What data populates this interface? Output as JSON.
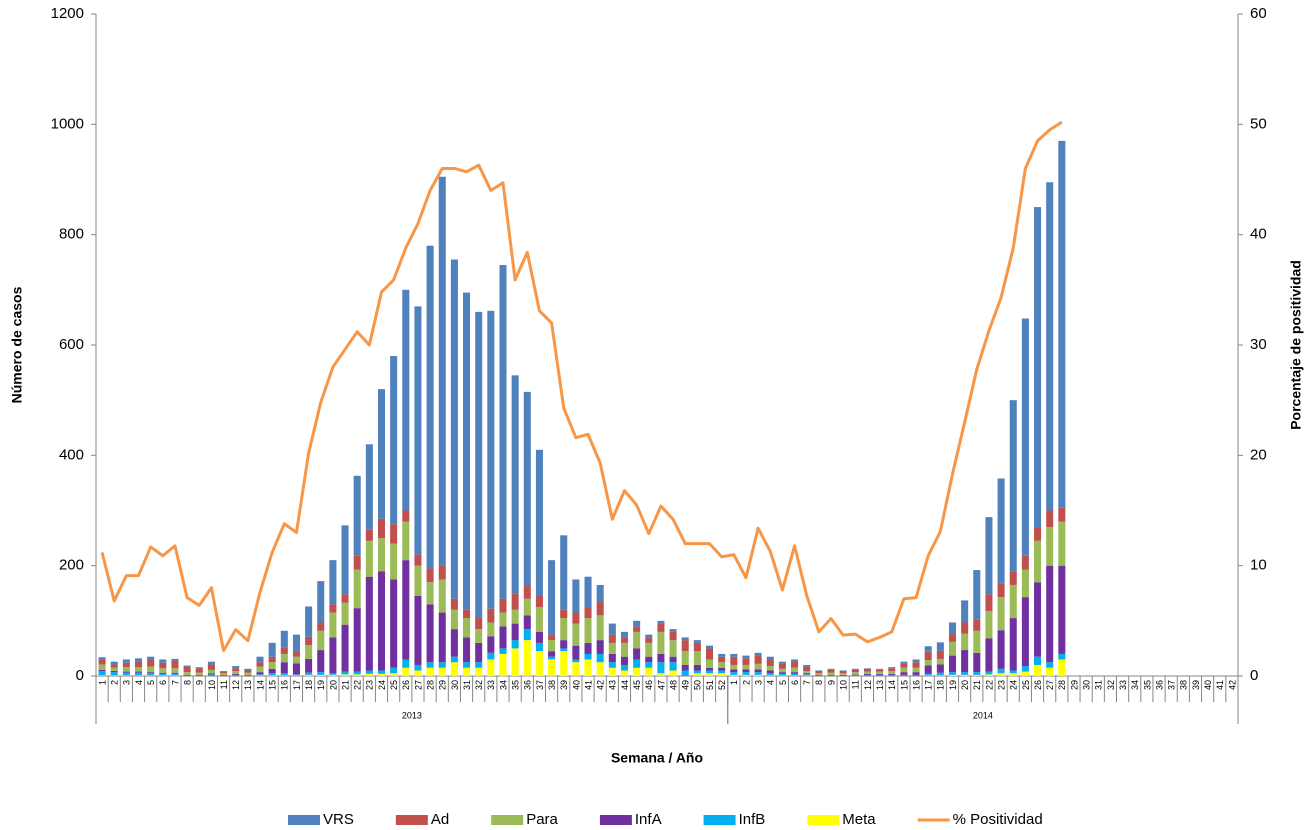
{
  "chart_data": {
    "type": "bar",
    "x_label": "Semana / Año",
    "y_label": "Número de casos",
    "y2_label": "Porcentaje de positividad",
    "categories": [
      "1",
      "2",
      "3",
      "4",
      "5",
      "6",
      "7",
      "8",
      "9",
      "10",
      "11",
      "12",
      "13",
      "14",
      "15",
      "16",
      "17",
      "18",
      "19",
      "20",
      "21",
      "22",
      "23",
      "24",
      "25",
      "26",
      "27",
      "28",
      "29",
      "30",
      "31",
      "32",
      "33",
      "34",
      "35",
      "36",
      "37",
      "38",
      "39",
      "40",
      "41",
      "42",
      "43",
      "44",
      "45",
      "46",
      "47",
      "48",
      "49",
      "50",
      "51",
      "52",
      "1",
      "2",
      "3",
      "4",
      "5",
      "6",
      "7",
      "8",
      "9",
      "10",
      "11",
      "12",
      "13",
      "14",
      "15",
      "16",
      "17",
      "18",
      "19",
      "20",
      "21",
      "22",
      "23",
      "24",
      "25",
      "26",
      "27",
      "28",
      "29",
      "30",
      "31",
      "32",
      "33",
      "34",
      "35",
      "36",
      "37",
      "38",
      "39",
      "40",
      "41",
      "42"
    ],
    "groups": [
      "2013",
      "2014"
    ],
    "ylim": [
      0,
      1200
    ],
    "yticks": [
      0,
      200,
      400,
      600,
      800,
      1000,
      1200
    ],
    "y2lim": [
      0,
      60
    ],
    "y2ticks": [
      0,
      10,
      20,
      30,
      40,
      50,
      60
    ],
    "series": [
      {
        "name": "VRS",
        "color": "#4f81bd",
        "values": [
          5,
          5,
          6,
          6,
          6,
          6,
          3,
          2,
          2,
          5,
          1,
          4,
          3,
          10,
          25,
          30,
          30,
          55,
          75,
          80,
          125,
          145,
          155,
          235,
          305,
          400,
          450,
          585,
          705,
          615,
          575,
          555,
          540,
          605,
          395,
          350,
          265,
          135,
          135,
          60,
          55,
          30,
          20,
          10,
          10,
          5,
          5,
          5,
          5,
          5,
          5,
          5,
          5,
          5,
          5,
          5,
          3,
          3,
          3,
          1,
          1,
          1,
          1,
          1,
          1,
          2,
          3,
          5,
          10,
          15,
          20,
          40,
          90,
          140,
          190,
          310,
          430,
          580,
          595,
          665,
          null,
          null,
          null,
          null,
          null,
          null,
          null,
          null,
          null,
          null,
          null,
          null,
          null,
          null
        ]
      },
      {
        "name": "Ad",
        "color": "#c0504d",
        "values": [
          8,
          6,
          8,
          10,
          12,
          10,
          14,
          10,
          8,
          10,
          3,
          5,
          4,
          8,
          10,
          12,
          10,
          15,
          15,
          15,
          15,
          25,
          20,
          35,
          35,
          20,
          20,
          25,
          25,
          20,
          15,
          20,
          25,
          25,
          30,
          25,
          20,
          10,
          15,
          20,
          20,
          25,
          15,
          10,
          10,
          10,
          15,
          15,
          20,
          15,
          20,
          10,
          15,
          12,
          15,
          12,
          10,
          12,
          8,
          4,
          6,
          4,
          5,
          5,
          4,
          5,
          8,
          10,
          15,
          15,
          15,
          20,
          20,
          30,
          25,
          25,
          25,
          25,
          30,
          25,
          null,
          null,
          null,
          null,
          null,
          null,
          null,
          null,
          null,
          null,
          null,
          null,
          null,
          null
        ]
      },
      {
        "name": "Para",
        "color": "#9bbb59",
        "values": [
          10,
          6,
          8,
          8,
          10,
          8,
          8,
          5,
          4,
          6,
          3,
          5,
          4,
          10,
          12,
          15,
          12,
          25,
          35,
          45,
          40,
          70,
          65,
          60,
          65,
          70,
          55,
          40,
          60,
          35,
          35,
          25,
          25,
          25,
          25,
          30,
          45,
          20,
          40,
          40,
          45,
          45,
          20,
          25,
          30,
          25,
          40,
          30,
          25,
          25,
          15,
          10,
          8,
          8,
          10,
          8,
          6,
          8,
          4,
          3,
          4,
          3,
          4,
          4,
          4,
          5,
          8,
          8,
          10,
          10,
          25,
          30,
          40,
          50,
          60,
          60,
          50,
          75,
          70,
          80,
          null,
          null,
          null,
          null,
          null,
          null,
          null,
          null,
          null,
          null,
          null,
          null,
          null,
          null
        ]
      },
      {
        "name": "InfA",
        "color": "#7030a0",
        "values": [
          2,
          2,
          2,
          2,
          2,
          2,
          2,
          1,
          1,
          2,
          1,
          2,
          1,
          4,
          8,
          20,
          20,
          25,
          40,
          65,
          85,
          115,
          170,
          180,
          160,
          180,
          125,
          105,
          90,
          50,
          45,
          35,
          30,
          40,
          30,
          25,
          20,
          10,
          15,
          25,
          20,
          25,
          15,
          15,
          20,
          10,
          15,
          10,
          10,
          10,
          5,
          5,
          5,
          5,
          5,
          5,
          3,
          3,
          2,
          1,
          1,
          1,
          1,
          2,
          2,
          2,
          5,
          5,
          15,
          15,
          30,
          40,
          35,
          60,
          70,
          95,
          125,
          135,
          175,
          160,
          null,
          null,
          null,
          null,
          null,
          null,
          null,
          null,
          null,
          null,
          null,
          null,
          null,
          null
        ]
      },
      {
        "name": "InfB",
        "color": "#00b0f0",
        "values": [
          8,
          6,
          5,
          5,
          4,
          3,
          3,
          1,
          1,
          3,
          1,
          2,
          1,
          2,
          4,
          4,
          2,
          4,
          5,
          3,
          5,
          5,
          6,
          6,
          10,
          15,
          10,
          10,
          10,
          10,
          10,
          10,
          12,
          10,
          15,
          20,
          15,
          5,
          5,
          5,
          10,
          15,
          10,
          10,
          15,
          10,
          20,
          15,
          10,
          5,
          5,
          5,
          5,
          5,
          5,
          4,
          3,
          3,
          2,
          1,
          1,
          1,
          2,
          2,
          2,
          2,
          2,
          2,
          3,
          5,
          5,
          5,
          5,
          5,
          8,
          5,
          10,
          15,
          10,
          10,
          null,
          null,
          null,
          null,
          null,
          null,
          null,
          null,
          null,
          null,
          null,
          null,
          null,
          null
        ]
      },
      {
        "name": "Meta",
        "color": "#ffff00",
        "values": [
          1,
          1,
          1,
          1,
          1,
          1,
          1,
          0,
          0,
          0,
          0,
          0,
          0,
          1,
          1,
          1,
          1,
          2,
          2,
          2,
          3,
          3,
          4,
          4,
          5,
          15,
          10,
          15,
          15,
          25,
          15,
          15,
          30,
          40,
          50,
          65,
          45,
          30,
          45,
          25,
          30,
          25,
          15,
          10,
          15,
          15,
          5,
          10,
          0,
          5,
          5,
          5,
          2,
          2,
          2,
          1,
          1,
          1,
          1,
          0,
          0,
          0,
          0,
          0,
          0,
          0,
          0,
          0,
          1,
          1,
          2,
          2,
          2,
          3,
          5,
          5,
          8,
          20,
          15,
          30,
          null,
          null,
          null,
          null,
          null,
          null,
          null,
          null,
          null,
          null,
          null,
          null,
          null,
          null
        ]
      },
      {
        "name": "% Positividad",
        "color": "#f79646",
        "type": "line",
        "axis": "y2",
        "values": [
          11.2,
          6.8,
          9.1,
          9.1,
          11.7,
          10.9,
          11.8,
          7.1,
          6.4,
          8.0,
          2.3,
          4.2,
          3.2,
          7.6,
          11.2,
          13.8,
          13.0,
          20.2,
          24.8,
          28.0,
          29.6,
          31.2,
          30.0,
          34.8,
          35.9,
          38.8,
          41.0,
          44.0,
          46.0,
          46.0,
          45.7,
          46.3,
          44.0,
          44.7,
          35.9,
          38.4,
          33.1,
          32.0,
          24.3,
          21.6,
          21.9,
          19.3,
          14.2,
          16.8,
          15.5,
          12.9,
          15.4,
          14.2,
          12.0,
          12.0,
          12.0,
          10.8,
          11.0,
          8.9,
          13.4,
          11.3,
          7.8,
          11.8,
          7.3,
          4.0,
          5.2,
          3.7,
          3.8,
          3.1,
          3.5,
          4.0,
          7.0,
          7.1,
          10.9,
          13.1,
          18.3,
          23.0,
          27.8,
          31.3,
          34.3,
          38.8,
          46.0,
          48.5,
          49.5,
          50.2,
          null,
          null,
          null,
          null,
          null,
          null,
          null,
          null,
          null,
          null,
          null,
          null,
          null,
          null
        ]
      }
    ]
  }
}
